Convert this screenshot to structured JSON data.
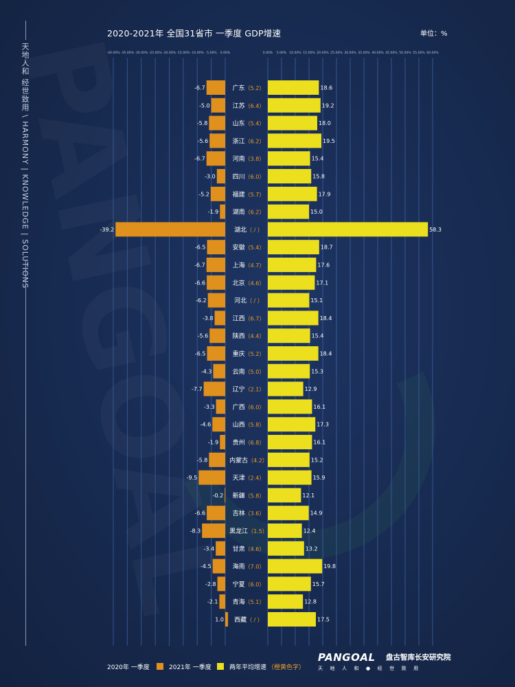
{
  "header": {
    "title": "2020-2021年  全国31省市  一季度  GDP增速",
    "unit": "单位：%"
  },
  "sidebar": {
    "text": "天地人和  经世致用  \\  HARMONY | KNOWLEDGE | SOLUTIONS"
  },
  "watermark": "PANGOAL",
  "chart_data": {
    "type": "bar",
    "title": "2020-2021年 全国31省市 一季度 GDP增速",
    "unit": "%",
    "left_axis": {
      "ticks": [
        "-40.00%",
        "-35.00%",
        "-30.00%",
        "-25.00%",
        "-20.00%",
        "-15.00%",
        "-10.00%",
        "-5.00%",
        "0.00%"
      ],
      "range": [
        -40,
        0
      ]
    },
    "right_axis": {
      "ticks": [
        "0.00%",
        "5.00%",
        "10.00%",
        "15.00%",
        "20.00%",
        "25.00%",
        "30.00%",
        "35.00%",
        "40.00%",
        "45.00%",
        "50.00%",
        "55.00%",
        "60.00%"
      ],
      "range": [
        0,
        60
      ]
    },
    "categories": [
      "广东",
      "江苏",
      "山东",
      "浙江",
      "河南",
      "四川",
      "福建",
      "湖南",
      "湖北",
      "安徽",
      "上海",
      "北京",
      "河北",
      "江西",
      "陕西",
      "重庆",
      "云南",
      "辽宁",
      "广西",
      "山西",
      "贵州",
      "内蒙古",
      "天津",
      "新疆",
      "吉林",
      "黑龙江",
      "甘肃",
      "海南",
      "宁夏",
      "青海",
      "西藏"
    ],
    "two_year_avg_labels": [
      "（5.2）",
      "（6.4）",
      "（5.4）",
      "（6.2）",
      "（3.8）",
      "（6.0）",
      "（5.7）",
      "（6.2）",
      "（ / ）",
      "（5.4）",
      "（4.7）",
      "（4.6）",
      "（ / ）",
      "（6.7）",
      "（4.4）",
      "（5.2）",
      "（5.0）",
      "（2.1）",
      "（6.0）",
      "（5.8）",
      "（6.8）",
      "（4.2）",
      "（2.4）",
      "（5.8）",
      "（3.6）",
      "（1.5）",
      "（4.6）",
      "（7.0）",
      "（6.0）",
      "（5.1）",
      "（ / ）"
    ],
    "series": [
      {
        "name": "2020年 一季度",
        "color": "#e0901c",
        "values": [
          -6.7,
          -5.0,
          -5.8,
          -5.6,
          -6.7,
          -3.0,
          -5.2,
          -1.9,
          -39.2,
          -6.5,
          -6.7,
          -6.6,
          -6.2,
          -3.8,
          -5.6,
          -6.5,
          -4.3,
          -7.7,
          -3.3,
          -4.6,
          -1.9,
          -5.8,
          -9.5,
          -0.2,
          -6.6,
          -8.3,
          -3.4,
          -4.5,
          -2.8,
          -2.1,
          1.0
        ]
      },
      {
        "name": "2021年 一季度",
        "color": "#ecdf1e",
        "values": [
          18.6,
          19.2,
          18.0,
          19.5,
          15.4,
          15.8,
          17.9,
          15.0,
          58.3,
          18.7,
          17.6,
          17.1,
          15.1,
          18.4,
          15.4,
          18.4,
          15.3,
          12.9,
          16.1,
          17.3,
          16.1,
          15.2,
          15.9,
          12.1,
          14.9,
          12.4,
          13.2,
          19.8,
          15.7,
          12.8,
          17.5
        ]
      }
    ],
    "legend_extra": {
      "name": "两年平均增速",
      "note": "（橙黄色字）"
    },
    "label_color": "#e8a02a"
  },
  "legend": {
    "item1": "2020年 一季度",
    "item2": "2021年 一季度",
    "item3": "两年平均增速",
    "item3_note": "（橙黄色字）",
    "color1": "#e0901c",
    "color2": "#ecdf1e"
  },
  "brand": {
    "logo": "PANGOAL",
    "name_cn": "盘古智库长安研究院",
    "slogan": "天地人和●经世致用"
  }
}
